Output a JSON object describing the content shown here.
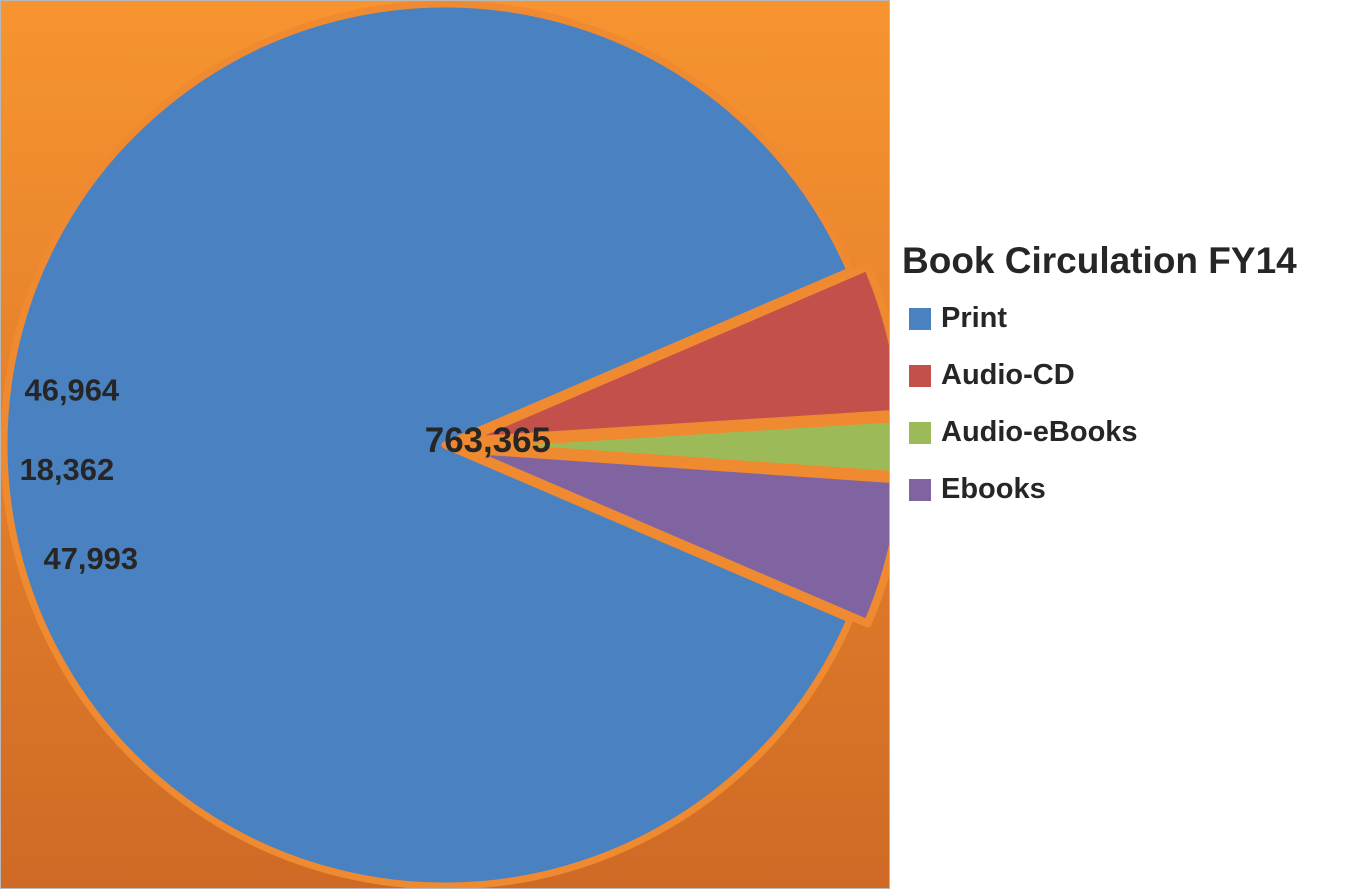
{
  "chart_data": {
    "type": "pie",
    "title": "Book Circulation FY14",
    "categories": [
      "Print",
      "Audio-CD",
      "Audio-eBooks",
      "Ebooks"
    ],
    "values": [
      763365,
      47993,
      18362,
      46964
    ],
    "data_labels": [
      "763,365",
      "47,993",
      "18,362",
      "46,964"
    ],
    "colors": [
      "#4a81c0",
      "#c4504c",
      "#9cbb58",
      "#8064a2"
    ],
    "legend_position": "right",
    "background": {
      "top_color": "#f79430",
      "bottom_color": "#cf6a26",
      "slice_outline_color": "#ef8a31"
    }
  }
}
